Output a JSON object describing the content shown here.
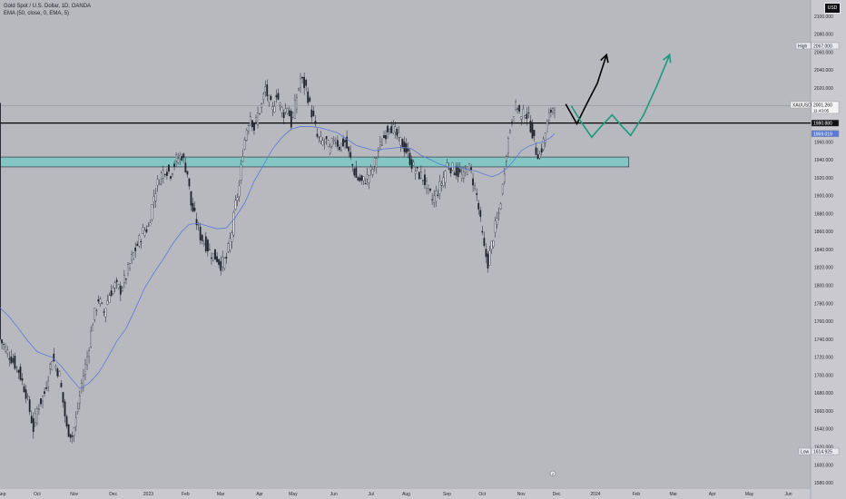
{
  "header": {
    "title": "Gold Spot / U.S. Dollar, 1D, OANDA",
    "indicator": "EMA (50, close, 0, EMA, 5)",
    "currency": "USD"
  },
  "colors": {
    "background": "#b8b8bf",
    "bull": "#1e222d",
    "bear": "#1e222d",
    "ema": "#5b7bd5",
    "zone": "#7ec8c4",
    "black_path": "#000000",
    "green_path": "#199b7d",
    "hline": "#000000"
  },
  "chart_data": {
    "type": "candlestick",
    "symbol": "XAUUSD",
    "x_ticks": [
      {
        "label": "Sep",
        "t": 1
      },
      {
        "label": "Oct",
        "t": 20
      },
      {
        "label": "Nov",
        "t": 40
      },
      {
        "label": "Dec",
        "t": 61
      },
      {
        "label": "2023",
        "t": 80
      },
      {
        "label": "Feb",
        "t": 100
      },
      {
        "label": "Mar",
        "t": 119
      },
      {
        "label": "Apr",
        "t": 140
      },
      {
        "label": "May",
        "t": 158
      },
      {
        "label": "Jun",
        "t": 180
      },
      {
        "label": "Jul",
        "t": 200
      },
      {
        "label": "Aug",
        "t": 219
      },
      {
        "label": "Sep",
        "t": 241
      },
      {
        "label": "Oct",
        "t": 260
      },
      {
        "label": "Nov",
        "t": 281
      },
      {
        "label": "Dec",
        "t": 300
      },
      {
        "label": "2024",
        "t": 321
      },
      {
        "label": "Feb",
        "t": 343
      },
      {
        "label": "Mar",
        "t": 363
      },
      {
        "label": "Apr",
        "t": 384
      },
      {
        "label": "May",
        "t": 404
      },
      {
        "label": "Jun",
        "t": 425
      }
    ],
    "y_ticks": [
      1580,
      1600,
      1620,
      1640,
      1660,
      1680,
      1700,
      1720,
      1740,
      1760,
      1780,
      1800,
      1820,
      1840,
      1860,
      1880,
      1900,
      1920,
      1940,
      1960,
      1980,
      2000,
      2020,
      2040,
      2060,
      2080,
      2100
    ],
    "ylim": [
      1573,
      2118
    ],
    "xlim": [
      0,
      437
    ],
    "close_path": [
      [
        0,
        1740
      ],
      [
        5,
        1722
      ],
      [
        10,
        1705
      ],
      [
        14,
        1680
      ],
      [
        18,
        1640
      ],
      [
        20,
        1662
      ],
      [
        24,
        1680
      ],
      [
        26,
        1700
      ],
      [
        28,
        1720
      ],
      [
        32,
        1700
      ],
      [
        34,
        1670
      ],
      [
        36,
        1640
      ],
      [
        39,
        1632
      ],
      [
        41,
        1650
      ],
      [
        44,
        1690
      ],
      [
        47,
        1720
      ],
      [
        50,
        1760
      ],
      [
        53,
        1785
      ],
      [
        56,
        1770
      ],
      [
        59,
        1790
      ],
      [
        62,
        1800
      ],
      [
        65,
        1795
      ],
      [
        68,
        1810
      ],
      [
        71,
        1830
      ],
      [
        74,
        1845
      ],
      [
        77,
        1860
      ],
      [
        80,
        1865
      ],
      [
        83,
        1900
      ],
      [
        86,
        1920
      ],
      [
        89,
        1930
      ],
      [
        92,
        1925
      ],
      [
        95,
        1940
      ],
      [
        98,
        1945
      ],
      [
        101,
        1925
      ],
      [
        103,
        1890
      ],
      [
        106,
        1870
      ],
      [
        108,
        1855
      ],
      [
        111,
        1845
      ],
      [
        114,
        1835
      ],
      [
        117,
        1830
      ],
      [
        119,
        1823
      ],
      [
        122,
        1830
      ],
      [
        125,
        1860
      ],
      [
        127,
        1890
      ],
      [
        129,
        1910
      ],
      [
        131,
        1950
      ],
      [
        133,
        1975
      ],
      [
        135,
        1990
      ],
      [
        137,
        1975
      ],
      [
        139,
        1990
      ],
      [
        141,
        2000
      ],
      [
        143,
        2020
      ],
      [
        145,
        2005
      ],
      [
        147,
        1995
      ],
      [
        149,
        2015
      ],
      [
        151,
        2000
      ],
      [
        153,
        1992
      ],
      [
        155,
        2000
      ],
      [
        157,
        1980
      ],
      [
        160,
        2010
      ],
      [
        162,
        2030
      ],
      [
        165,
        2020
      ],
      [
        167,
        2000
      ],
      [
        169,
        1985
      ],
      [
        171,
        1965
      ],
      [
        173,
        1960
      ],
      [
        176,
        1960
      ],
      [
        178,
        1950
      ],
      [
        180,
        1965
      ],
      [
        183,
        1955
      ],
      [
        186,
        1960
      ],
      [
        189,
        1940
      ],
      [
        192,
        1920
      ],
      [
        195,
        1915
      ],
      [
        198,
        1920
      ],
      [
        201,
        1930
      ],
      [
        204,
        1950
      ],
      [
        207,
        1965
      ],
      [
        210,
        1980
      ],
      [
        213,
        1970
      ],
      [
        216,
        1960
      ],
      [
        219,
        1950
      ],
      [
        222,
        1935
      ],
      [
        225,
        1925
      ],
      [
        228,
        1920
      ],
      [
        231,
        1905
      ],
      [
        233,
        1895
      ],
      [
        236,
        1905
      ],
      [
        239,
        1920
      ],
      [
        241,
        1935
      ],
      [
        244,
        1930
      ],
      [
        247,
        1925
      ],
      [
        250,
        1920
      ],
      [
        252,
        1935
      ],
      [
        254,
        1925
      ],
      [
        257,
        1900
      ],
      [
        259,
        1870
      ],
      [
        261,
        1840
      ],
      [
        263,
        1825
      ],
      [
        265,
        1845
      ],
      [
        267,
        1865
      ],
      [
        269,
        1880
      ],
      [
        271,
        1910
      ],
      [
        273,
        1950
      ],
      [
        275,
        1975
      ],
      [
        277,
        1995
      ],
      [
        279,
        2000
      ],
      [
        281,
        1985
      ],
      [
        283,
        1995
      ],
      [
        285,
        1985
      ],
      [
        287,
        1970
      ],
      [
        289,
        1950
      ],
      [
        291,
        1945
      ],
      [
        293,
        1960
      ],
      [
        295,
        1980
      ],
      [
        297,
        1995
      ],
      [
        299,
        2002
      ]
    ],
    "ema": [
      [
        0,
        1775
      ],
      [
        5,
        1765
      ],
      [
        10,
        1752
      ],
      [
        15,
        1738
      ],
      [
        20,
        1726
      ],
      [
        25,
        1722
      ],
      [
        28,
        1720
      ],
      [
        33,
        1710
      ],
      [
        38,
        1697
      ],
      [
        43,
        1685
      ],
      [
        48,
        1691
      ],
      [
        53,
        1702
      ],
      [
        58,
        1719
      ],
      [
        63,
        1738
      ],
      [
        68,
        1752
      ],
      [
        73,
        1774
      ],
      [
        78,
        1797
      ],
      [
        83,
        1814
      ],
      [
        88,
        1829
      ],
      [
        93,
        1846
      ],
      [
        98,
        1860
      ],
      [
        102,
        1868
      ],
      [
        107,
        1869
      ],
      [
        112,
        1866
      ],
      [
        117,
        1863
      ],
      [
        122,
        1864
      ],
      [
        127,
        1876
      ],
      [
        132,
        1892
      ],
      [
        137,
        1916
      ],
      [
        142,
        1934
      ],
      [
        147,
        1952
      ],
      [
        152,
        1965
      ],
      [
        157,
        1974
      ],
      [
        162,
        1977
      ],
      [
        167,
        1977
      ],
      [
        172,
        1976
      ],
      [
        177,
        1973
      ],
      [
        182,
        1970
      ],
      [
        187,
        1963
      ],
      [
        192,
        1956
      ],
      [
        197,
        1953
      ],
      [
        202,
        1950
      ],
      [
        207,
        1952
      ],
      [
        212,
        1953
      ],
      [
        217,
        1954
      ],
      [
        222,
        1952
      ],
      [
        227,
        1945
      ],
      [
        232,
        1940
      ],
      [
        237,
        1935
      ],
      [
        242,
        1932
      ],
      [
        247,
        1932
      ],
      [
        252,
        1929
      ],
      [
        257,
        1927
      ],
      [
        261,
        1924
      ],
      [
        265,
        1921
      ],
      [
        269,
        1924
      ],
      [
        273,
        1930
      ],
      [
        277,
        1939
      ],
      [
        281,
        1950
      ],
      [
        285,
        1955
      ],
      [
        289,
        1958
      ],
      [
        293,
        1960
      ],
      [
        297,
        1965
      ],
      [
        299,
        1969
      ]
    ],
    "zone": {
      "t0": 0,
      "t1": 339,
      "top": 1943,
      "bottom": 1932
    },
    "hline": {
      "value": 1980.88,
      "t0": 0
    },
    "grey_line": {
      "value": 2000
    },
    "black_path": [
      [
        305,
        2002
      ],
      [
        311,
        1980
      ],
      [
        316,
        2001
      ],
      [
        322,
        2025
      ],
      [
        327,
        2057
      ]
    ],
    "green_path": [
      [
        308,
        2000
      ],
      [
        313,
        1983
      ],
      [
        319,
        1965
      ],
      [
        324,
        1977
      ],
      [
        330,
        1990
      ],
      [
        335,
        1978
      ],
      [
        340,
        1967
      ],
      [
        347,
        1990
      ],
      [
        354,
        2022
      ],
      [
        361,
        2057
      ]
    ],
    "price_labels": [
      {
        "label": "High",
        "value": 2067.0,
        "text": "2067.000",
        "style": "high"
      },
      {
        "label": "XAUUSD",
        "value": 2001.26,
        "text": "2001.260",
        "sub": "11:43:05",
        "style": "current"
      },
      {
        "label": "",
        "value": 1980.88,
        "text": "1980.880",
        "style": "dark"
      },
      {
        "label": "",
        "value": 1969.019,
        "text": "1969.019",
        "style": "ema"
      },
      {
        "label": "Low",
        "value": 1614.925,
        "text": "1614.925",
        "style": "low"
      }
    ],
    "arrows": [
      {
        "series": "black",
        "tip_t": 327,
        "tip_v": 2057
      },
      {
        "series": "green",
        "tip_t": 361,
        "tip_v": 2057
      }
    ],
    "event_markers": [
      {
        "t": 298,
        "label": "2"
      }
    ]
  }
}
